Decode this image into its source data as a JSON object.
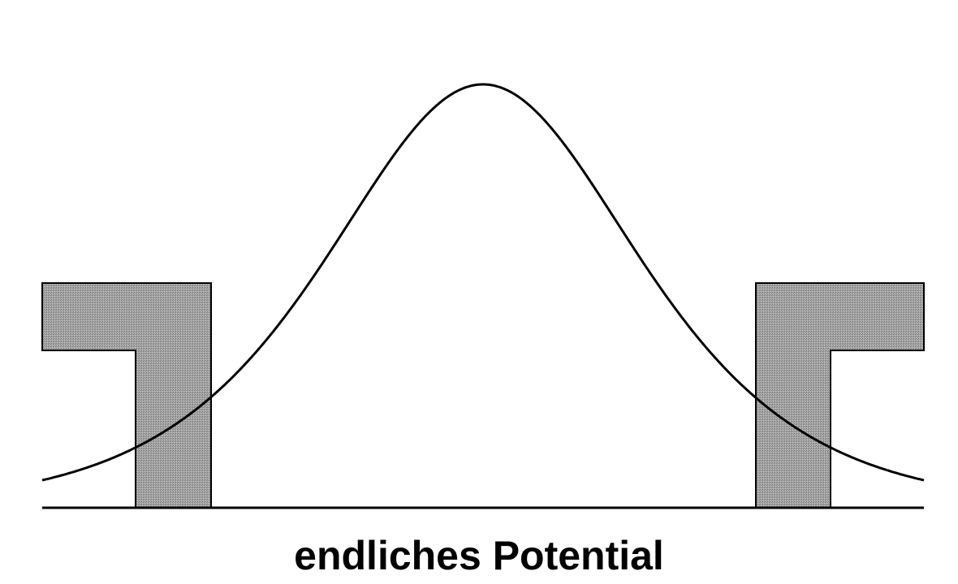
{
  "caption": "endliches Potential",
  "colors": {
    "background": "#ffffff",
    "stroke": "#000000",
    "barrier_fill": "#9a9a9a"
  }
}
